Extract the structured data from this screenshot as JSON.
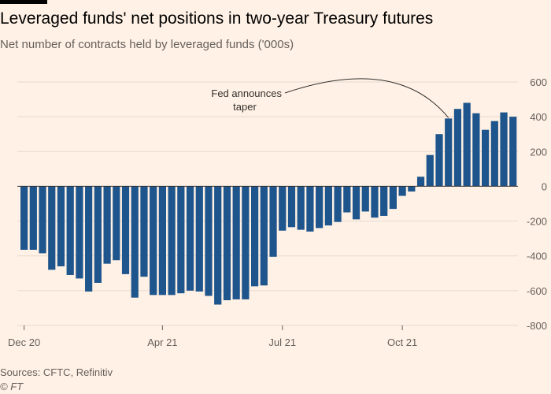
{
  "title": "Leveraged funds' net positions in two-year Treasury futures",
  "subtitle": "Net number of contracts held by leveraged funds ('000s)",
  "source": "Sources: CFTC, Refinitiv",
  "credit": "© FT",
  "colors": {
    "bar": "#1e558c",
    "background": "#fff1e5",
    "grid": "#e6d9ce",
    "zero": "#33302e"
  },
  "chart_data": {
    "type": "bar",
    "title": "Leveraged funds' net positions in two-year Treasury futures",
    "ylabel": "Net number of contracts held by leveraged funds ('000s)",
    "ylim": [
      -800,
      600
    ],
    "yticks": [
      600,
      400,
      200,
      0,
      -200,
      -400,
      -600,
      -800
    ],
    "y_axis_side": "right",
    "grid": true,
    "x_tick_labels": [
      {
        "label": "Dec 20",
        "index": 0
      },
      {
        "label": "Apr 21",
        "index": 15
      },
      {
        "label": "Jul 21",
        "index": 28
      },
      {
        "label": "Oct 21",
        "index": 41
      }
    ],
    "values": [
      -365,
      -365,
      -385,
      -480,
      -460,
      -510,
      -530,
      -605,
      -555,
      -445,
      -425,
      -505,
      -640,
      -520,
      -625,
      -625,
      -625,
      -615,
      -600,
      -605,
      -630,
      -680,
      -655,
      -650,
      -650,
      -575,
      -570,
      -405,
      -255,
      -235,
      -250,
      -260,
      -240,
      -225,
      -205,
      -150,
      -190,
      -145,
      -180,
      -170,
      -130,
      -55,
      -30,
      55,
      180,
      300,
      390,
      445,
      480,
      420,
      325,
      375,
      425,
      400
    ],
    "annotations": [
      {
        "text_lines": [
          "Fed announces",
          "taper"
        ],
        "target_index": 46
      }
    ]
  }
}
